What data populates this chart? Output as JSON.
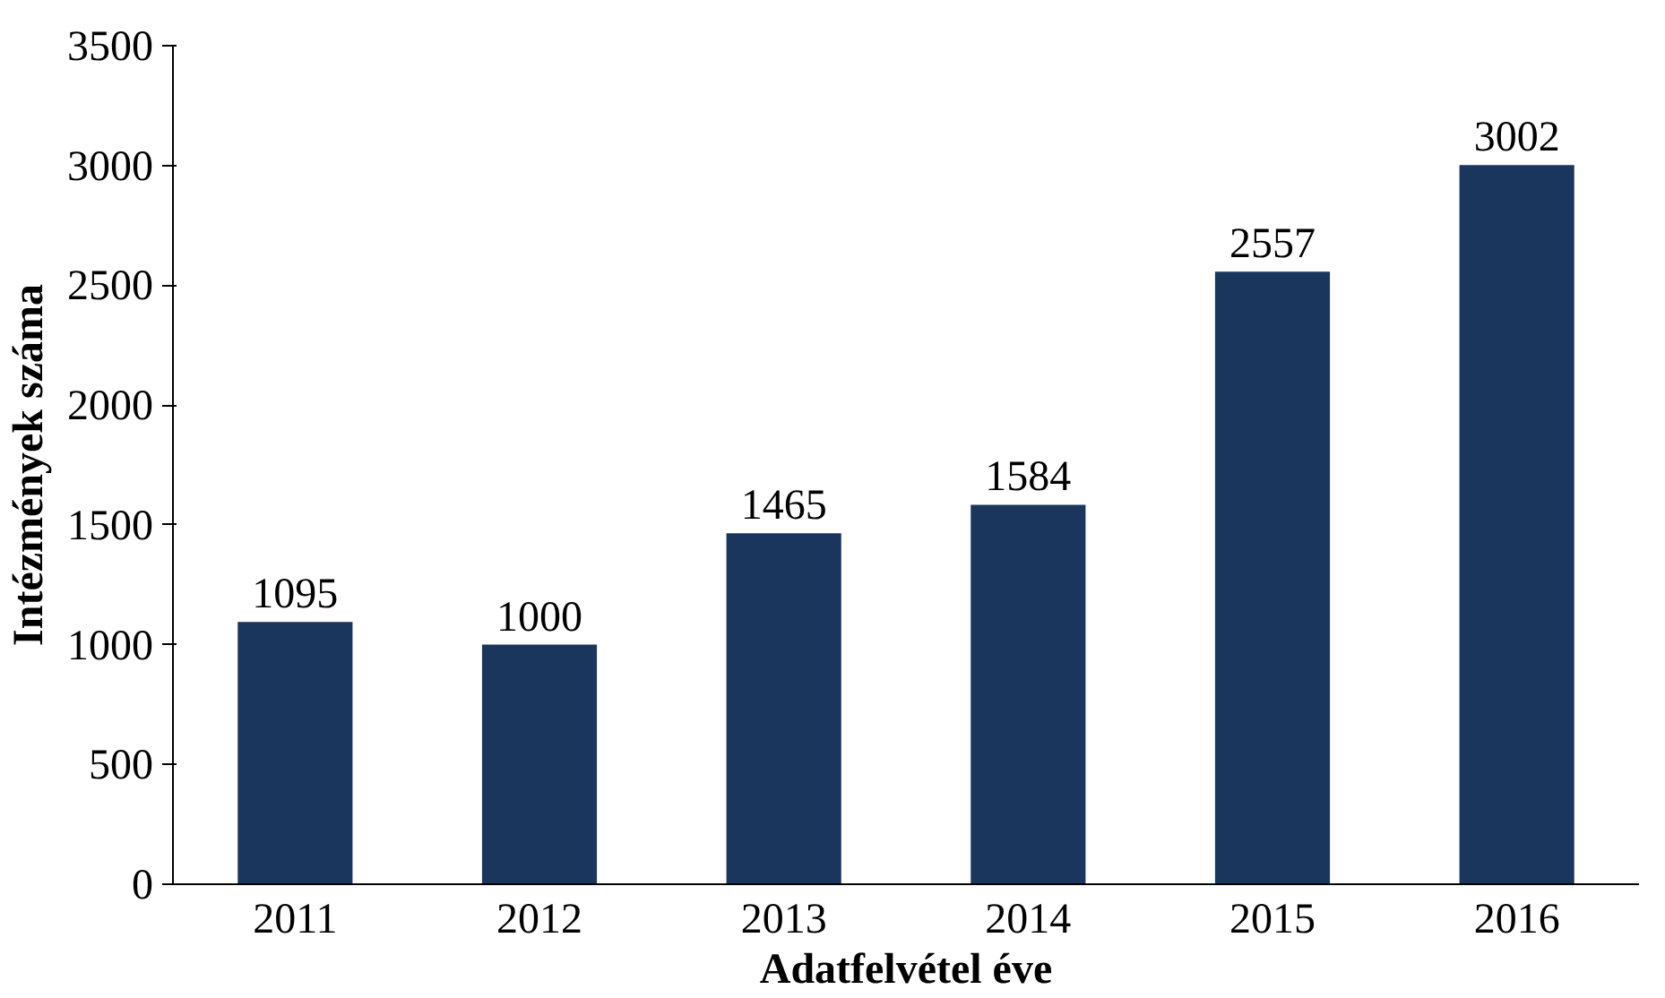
{
  "chart_data": {
    "type": "bar",
    "xlabel": "Adatfelvétel éve",
    "ylabel": "Intézmények száma",
    "categories": [
      "2011",
      "2012",
      "2013",
      "2014",
      "2015",
      "2016"
    ],
    "values": [
      1095,
      1000,
      1465,
      1584,
      2557,
      3002
    ],
    "color": "#1b365d",
    "ylim": [
      0,
      3500
    ],
    "yticks": [
      0,
      500,
      1000,
      1500,
      2000,
      2500,
      3000,
      3500
    ],
    "grid": false,
    "data_labels": true
  }
}
